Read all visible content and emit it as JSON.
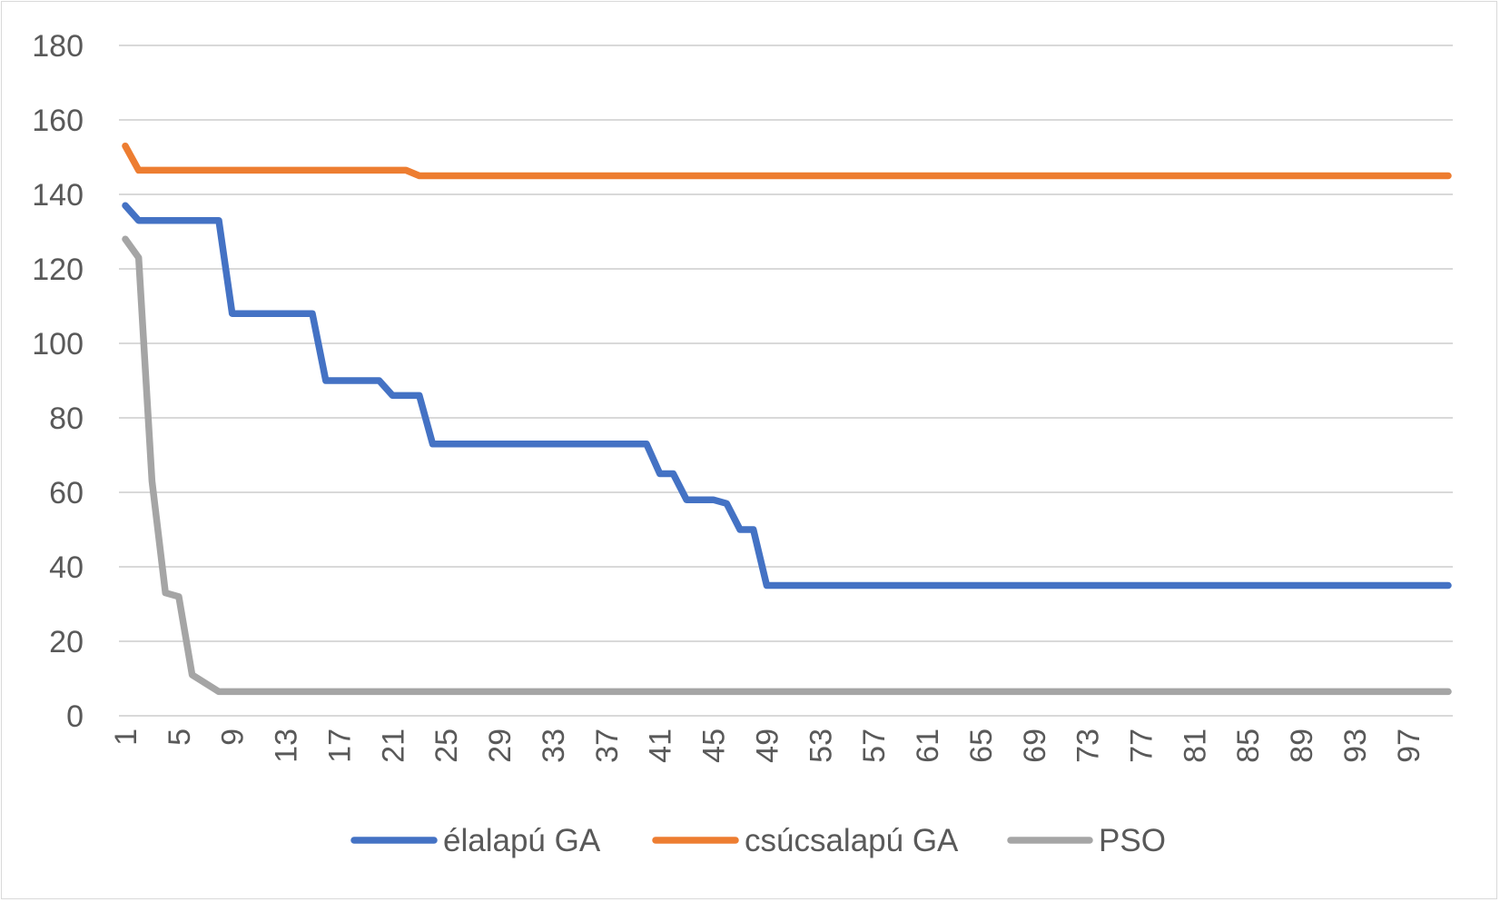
{
  "chart_data": {
    "type": "line",
    "title": "",
    "xlabel": "",
    "ylabel": "",
    "ylim": [
      0,
      180
    ],
    "y_ticks": [
      0,
      20,
      40,
      60,
      80,
      100,
      120,
      140,
      160,
      180
    ],
    "x_range": [
      1,
      100
    ],
    "x_tick_labels": [
      "1",
      "5",
      "9",
      "13",
      "17",
      "21",
      "25",
      "29",
      "33",
      "37",
      "41",
      "45",
      "49",
      "53",
      "57",
      "61",
      "65",
      "69",
      "73",
      "77",
      "81",
      "85",
      "89",
      "93",
      "97"
    ],
    "grid": "horizontal",
    "legend_position": "bottom",
    "series": [
      {
        "name": "élalapú GA",
        "color": "#4472C4",
        "points": [
          [
            1,
            137
          ],
          [
            2,
            133
          ],
          [
            8,
            133
          ],
          [
            9,
            108
          ],
          [
            15,
            108
          ],
          [
            16,
            90
          ],
          [
            20,
            90
          ],
          [
            21,
            86
          ],
          [
            23,
            86
          ],
          [
            24,
            73
          ],
          [
            40,
            73
          ],
          [
            41,
            65
          ],
          [
            42,
            65
          ],
          [
            43,
            58
          ],
          [
            45,
            58
          ],
          [
            46,
            57
          ],
          [
            47,
            50
          ],
          [
            48,
            50
          ],
          [
            49,
            35
          ],
          [
            100,
            35
          ]
        ]
      },
      {
        "name": "csúcsalapú GA",
        "color": "#ED7D31",
        "points": [
          [
            1,
            153
          ],
          [
            2,
            146.5
          ],
          [
            22,
            146.5
          ],
          [
            23,
            145
          ],
          [
            100,
            145
          ]
        ]
      },
      {
        "name": "PSO",
        "color": "#A5A5A5",
        "points": [
          [
            1,
            128
          ],
          [
            2,
            123
          ],
          [
            3,
            63
          ],
          [
            4,
            33
          ],
          [
            5,
            32
          ],
          [
            6,
            11
          ],
          [
            8,
            6.5
          ],
          [
            100,
            6.5
          ]
        ]
      }
    ]
  }
}
